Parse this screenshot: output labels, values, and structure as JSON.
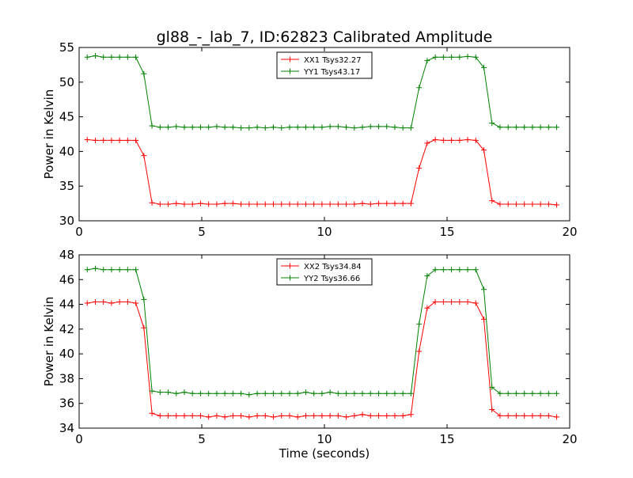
{
  "title": "gl88_-_lab_7, ID:62823 Calibrated Amplitude",
  "chart_data": [
    {
      "type": "line",
      "title": "gl88_-_lab_7, ID:62823 Calibrated Amplitude",
      "xlabel": "",
      "ylabel": "Power in Kelvin",
      "xlim": [
        0,
        20
      ],
      "ylim": [
        30,
        55
      ],
      "xticks": [
        0,
        5,
        10,
        15,
        20
      ],
      "yticks": [
        30,
        35,
        40,
        45,
        50,
        55
      ],
      "legend_position": "top-center",
      "x": [
        0.33,
        0.66,
        0.99,
        1.32,
        1.65,
        1.98,
        2.31,
        2.64,
        2.97,
        3.3,
        3.63,
        3.96,
        4.29,
        4.62,
        4.95,
        5.28,
        5.61,
        5.94,
        6.27,
        6.6,
        6.93,
        7.26,
        7.59,
        7.92,
        8.25,
        8.58,
        8.91,
        9.24,
        9.57,
        9.9,
        10.23,
        10.56,
        10.89,
        11.22,
        11.55,
        11.88,
        12.21,
        12.54,
        12.87,
        13.2,
        13.53,
        13.86,
        14.19,
        14.52,
        14.85,
        15.18,
        15.51,
        15.84,
        16.17,
        16.5,
        16.83,
        17.16,
        17.49,
        17.82,
        18.15,
        18.48,
        18.81,
        19.14,
        19.47
      ],
      "series": [
        {
          "name": "XX1 Tsys32.27",
          "color": "#ff0000",
          "values": [
            41.7,
            41.6,
            41.6,
            41.6,
            41.6,
            41.6,
            41.6,
            39.4,
            32.6,
            32.4,
            32.4,
            32.5,
            32.4,
            32.4,
            32.5,
            32.4,
            32.4,
            32.5,
            32.5,
            32.4,
            32.4,
            32.4,
            32.4,
            32.4,
            32.4,
            32.4,
            32.4,
            32.4,
            32.4,
            32.4,
            32.4,
            32.4,
            32.4,
            32.4,
            32.5,
            32.4,
            32.5,
            32.5,
            32.5,
            32.5,
            32.5,
            37.6,
            41.2,
            41.7,
            41.6,
            41.6,
            41.6,
            41.7,
            41.6,
            40.2,
            32.9,
            32.4,
            32.4,
            32.4,
            32.4,
            32.4,
            32.4,
            32.4,
            32.3
          ]
        },
        {
          "name": "YY1 Tsys43.17",
          "color": "#008000",
          "values": [
            53.6,
            53.8,
            53.6,
            53.6,
            53.6,
            53.6,
            53.6,
            51.2,
            43.7,
            43.5,
            43.5,
            43.6,
            43.5,
            43.5,
            43.5,
            43.5,
            43.6,
            43.5,
            43.5,
            43.4,
            43.4,
            43.5,
            43.4,
            43.5,
            43.4,
            43.5,
            43.5,
            43.5,
            43.5,
            43.5,
            43.6,
            43.6,
            43.5,
            43.4,
            43.5,
            43.6,
            43.6,
            43.6,
            43.5,
            43.4,
            43.4,
            49.2,
            53.1,
            53.6,
            53.6,
            53.6,
            53.6,
            53.7,
            53.6,
            52.1,
            44.1,
            43.5,
            43.5,
            43.5,
            43.5,
            43.5,
            43.5,
            43.5,
            43.5
          ]
        }
      ]
    },
    {
      "type": "line",
      "title": "",
      "xlabel": "Time (seconds)",
      "ylabel": "Power in Kelvin",
      "xlim": [
        0,
        20
      ],
      "ylim": [
        34,
        48
      ],
      "xticks": [
        0,
        5,
        10,
        15,
        20
      ],
      "yticks": [
        34,
        36,
        38,
        40,
        42,
        44,
        46,
        48
      ],
      "legend_position": "top-center",
      "x": [
        0.33,
        0.66,
        0.99,
        1.32,
        1.65,
        1.98,
        2.31,
        2.64,
        2.97,
        3.3,
        3.63,
        3.96,
        4.29,
        4.62,
        4.95,
        5.28,
        5.61,
        5.94,
        6.27,
        6.6,
        6.93,
        7.26,
        7.59,
        7.92,
        8.25,
        8.58,
        8.91,
        9.24,
        9.57,
        9.9,
        10.23,
        10.56,
        10.89,
        11.22,
        11.55,
        11.88,
        12.21,
        12.54,
        12.87,
        13.2,
        13.53,
        13.86,
        14.19,
        14.52,
        14.85,
        15.18,
        15.51,
        15.84,
        16.17,
        16.5,
        16.83,
        17.16,
        17.49,
        17.82,
        18.15,
        18.48,
        18.81,
        19.14,
        19.47
      ],
      "series": [
        {
          "name": "XX2 Tsys34.84",
          "color": "#ff0000",
          "values": [
            44.1,
            44.2,
            44.2,
            44.1,
            44.2,
            44.2,
            44.1,
            42.1,
            35.2,
            35.0,
            35.0,
            35.0,
            35.0,
            35.0,
            35.0,
            34.9,
            35.0,
            34.9,
            35.0,
            35.0,
            34.9,
            35.0,
            35.0,
            34.9,
            35.0,
            35.0,
            34.9,
            35.0,
            35.0,
            35.0,
            35.0,
            35.0,
            34.9,
            35.0,
            35.1,
            35.0,
            35.0,
            35.0,
            35.0,
            35.0,
            35.1,
            40.2,
            43.7,
            44.2,
            44.2,
            44.2,
            44.2,
            44.2,
            44.1,
            42.8,
            35.5,
            35.0,
            35.0,
            35.0,
            35.0,
            35.0,
            35.0,
            35.0,
            34.9
          ]
        },
        {
          "name": "YY2 Tsys36.66",
          "color": "#008000",
          "values": [
            46.8,
            46.9,
            46.8,
            46.8,
            46.8,
            46.8,
            46.8,
            44.4,
            37.0,
            36.9,
            36.9,
            36.8,
            36.9,
            36.8,
            36.8,
            36.8,
            36.8,
            36.8,
            36.8,
            36.8,
            36.7,
            36.8,
            36.8,
            36.8,
            36.8,
            36.8,
            36.8,
            36.9,
            36.8,
            36.8,
            36.9,
            36.8,
            36.8,
            36.8,
            36.8,
            36.8,
            36.8,
            36.8,
            36.8,
            36.8,
            36.8,
            42.4,
            46.3,
            46.8,
            46.8,
            46.8,
            46.8,
            46.8,
            46.8,
            45.2,
            37.3,
            36.8,
            36.8,
            36.8,
            36.8,
            36.8,
            36.8,
            36.8,
            36.8
          ]
        }
      ]
    }
  ]
}
